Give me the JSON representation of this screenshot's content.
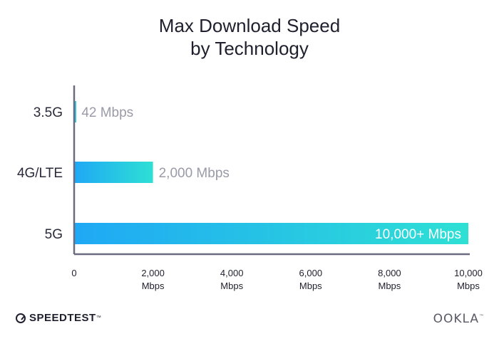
{
  "title_line1": "Max Download Speed",
  "title_line2": "by Technology",
  "chart_data": {
    "type": "bar",
    "orientation": "horizontal",
    "categories": [
      "3.5G",
      "4G/LTE",
      "5G"
    ],
    "values": [
      42,
      2000,
      10000
    ],
    "data_labels": [
      "42 Mbps",
      "2,000 Mbps",
      "10,000+ Mbps"
    ],
    "xlim": [
      0,
      10000
    ],
    "x_ticks": [
      0,
      2000,
      4000,
      6000,
      8000,
      10000
    ],
    "x_tick_labels": [
      "0",
      "2,000",
      "4,000",
      "6,000",
      "8,000",
      "10,000"
    ],
    "x_tick_unit": "Mbps",
    "grid": false,
    "bar_gradient": [
      "#1fa8f5",
      "#2ee0d4"
    ]
  },
  "footer": {
    "left_brand": "SPEEDTEST",
    "right_brand": "OOKLA"
  }
}
